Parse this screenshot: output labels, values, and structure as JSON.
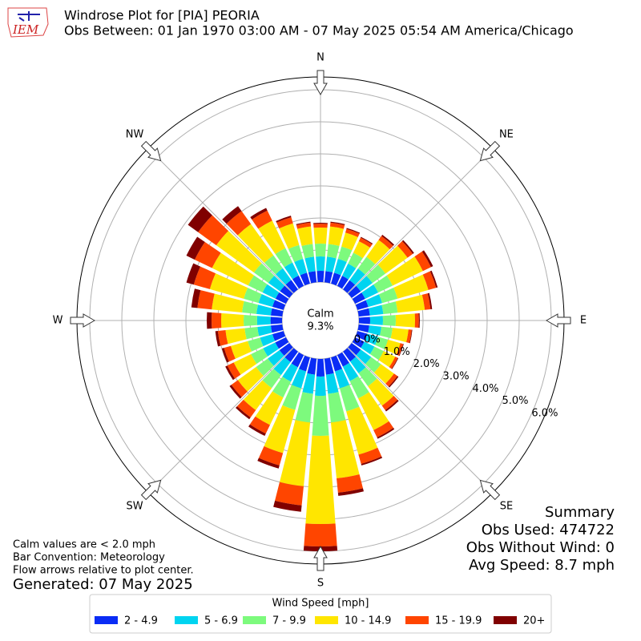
{
  "chart_data": {
    "type": "windrose",
    "title": "Windrose Plot for [PIA] PEORIA",
    "subtitle": "Obs Between: 01 Jan 1970 03:00 AM - 07 May 2025 05:54 AM America/Chicago",
    "logo_text": "IEM",
    "compass": [
      "N",
      "NE",
      "E",
      "SE",
      "S",
      "SW",
      "W",
      "NW"
    ],
    "x": [
      0,
      10,
      20,
      30,
      40,
      50,
      60,
      70,
      80,
      90,
      100,
      110,
      120,
      130,
      140,
      150,
      160,
      170,
      180,
      190,
      200,
      210,
      220,
      230,
      240,
      250,
      260,
      270,
      280,
      290,
      300,
      310,
      320,
      330,
      340,
      350
    ],
    "ylim": [
      0,
      6.4
    ],
    "yticks": [
      {
        "value": 0,
        "label": "0.0%"
      },
      {
        "value": 1,
        "label": "1.0%"
      },
      {
        "value": 2,
        "label": "2.0%"
      },
      {
        "value": 3,
        "label": "3.0%"
      },
      {
        "value": 4,
        "label": "4.0%"
      },
      {
        "value": 5,
        "label": "5.0%"
      },
      {
        "value": 6,
        "label": "6.0%"
      }
    ],
    "grid": true,
    "calm": {
      "label": "Calm",
      "value": 9.3,
      "value_label": "9.3%"
    },
    "legend_title": "Wind Speed [mph]",
    "series": [
      {
        "name": "2 - 4.9",
        "color": "#0a2cf5",
        "values": [
          0.35,
          0.35,
          0.35,
          0.35,
          0.35,
          0.35,
          0.35,
          0.35,
          0.35,
          0.35,
          0.33,
          0.32,
          0.32,
          0.35,
          0.38,
          0.4,
          0.45,
          0.5,
          0.55,
          0.5,
          0.45,
          0.42,
          0.4,
          0.38,
          0.37,
          0.36,
          0.36,
          0.36,
          0.36,
          0.36,
          0.36,
          0.36,
          0.36,
          0.36,
          0.35,
          0.35
        ]
      },
      {
        "name": "5 - 6.9",
        "color": "#00d4f0",
        "values": [
          0.45,
          0.45,
          0.45,
          0.42,
          0.45,
          0.45,
          0.45,
          0.45,
          0.42,
          0.4,
          0.38,
          0.35,
          0.35,
          0.4,
          0.45,
          0.5,
          0.55,
          0.6,
          0.6,
          0.6,
          0.55,
          0.5,
          0.5,
          0.45,
          0.42,
          0.4,
          0.42,
          0.42,
          0.45,
          0.45,
          0.45,
          0.45,
          0.45,
          0.45,
          0.45,
          0.45
        ]
      },
      {
        "name": "7 - 9.9",
        "color": "#7dfa7d",
        "values": [
          0.4,
          0.4,
          0.4,
          0.38,
          0.45,
          0.5,
          0.5,
          0.5,
          0.45,
          0.4,
          0.35,
          0.32,
          0.32,
          0.38,
          0.5,
          0.6,
          0.75,
          0.9,
          1.25,
          0.9,
          0.7,
          0.55,
          0.5,
          0.45,
          0.42,
          0.4,
          0.4,
          0.42,
          0.45,
          0.48,
          0.5,
          0.55,
          0.5,
          0.5,
          0.45,
          0.4
        ]
      },
      {
        "name": "10 - 14.9",
        "color": "#ffe600",
        "values": [
          0.5,
          0.55,
          0.45,
          0.4,
          0.65,
          0.85,
          1.05,
          1.0,
          0.85,
          0.6,
          0.5,
          0.4,
          0.4,
          0.5,
          0.75,
          1.1,
          1.4,
          1.75,
          2.75,
          2.0,
          1.4,
          0.95,
          0.85,
          0.7,
          0.6,
          0.55,
          0.6,
          0.7,
          0.95,
          1.1,
          1.25,
          1.45,
          1.2,
          0.95,
          0.7,
          0.55
        ]
      },
      {
        "name": "15 - 19.9",
        "color": "#ff4500",
        "values": [
          0.12,
          0.12,
          0.12,
          0.12,
          0.15,
          0.2,
          0.28,
          0.25,
          0.18,
          0.12,
          0.1,
          0.09,
          0.09,
          0.13,
          0.17,
          0.25,
          0.3,
          0.45,
          0.7,
          0.6,
          0.4,
          0.3,
          0.28,
          0.25,
          0.22,
          0.22,
          0.24,
          0.3,
          0.45,
          0.52,
          0.6,
          0.7,
          0.5,
          0.35,
          0.2,
          0.12
        ]
      },
      {
        "name": "20+",
        "color": "#800000",
        "values": [
          0.03,
          0.03,
          0.03,
          0.03,
          0.05,
          0.05,
          0.07,
          0.05,
          0.05,
          0.03,
          0.02,
          0.02,
          0.02,
          0.04,
          0.05,
          0.05,
          0.05,
          0.1,
          0.15,
          0.2,
          0.1,
          0.08,
          0.07,
          0.07,
          0.07,
          0.07,
          0.08,
          0.15,
          0.19,
          0.24,
          0.29,
          0.39,
          0.19,
          0.09,
          0.05,
          0.03
        ]
      }
    ],
    "notes": [
      "Calm values are < 2.0 mph",
      "Bar Convention: Meteorology",
      "Flow arrows relative to plot center."
    ],
    "generated": "Generated: 07 May 2025",
    "summary": [
      "Summary",
      "Obs Used: 474722",
      "Obs Without Wind: 0",
      "Avg Speed: 8.7 mph"
    ]
  }
}
